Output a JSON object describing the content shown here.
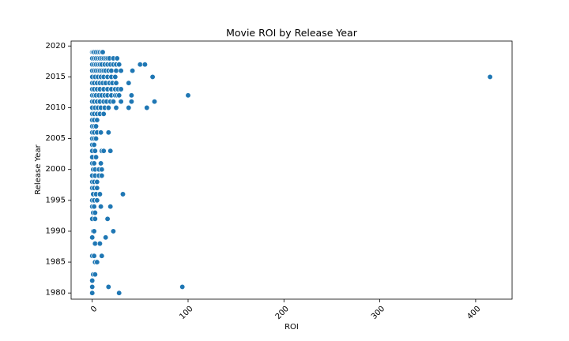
{
  "chart_data": {
    "type": "scatter",
    "title": "Movie ROI by Release Year",
    "xlabel": "ROI",
    "ylabel": "Release Year",
    "xlim": [
      -22,
      438
    ],
    "ylim": [
      1979,
      2020.8
    ],
    "xticks": [
      0,
      100,
      200,
      300,
      400
    ],
    "yticks": [
      1980,
      1985,
      1990,
      1995,
      2000,
      2005,
      2010,
      2015,
      2020
    ],
    "xtick_rotation": 45,
    "grid": false,
    "point_color": "#1f77b4",
    "points": [
      [
        0,
        2019
      ],
      [
        1,
        2019
      ],
      [
        2,
        2019
      ],
      [
        4,
        2019
      ],
      [
        6,
        2019
      ],
      [
        8,
        2019
      ],
      [
        10,
        2019
      ],
      [
        11,
        2019
      ],
      [
        0,
        2018
      ],
      [
        2,
        2018
      ],
      [
        4,
        2018
      ],
      [
        6,
        2018
      ],
      [
        8,
        2018
      ],
      [
        10,
        2018
      ],
      [
        12,
        2018
      ],
      [
        14,
        2018
      ],
      [
        16,
        2018
      ],
      [
        18,
        2018
      ],
      [
        22,
        2018
      ],
      [
        26,
        2018
      ],
      [
        0,
        2017
      ],
      [
        2,
        2017
      ],
      [
        4,
        2017
      ],
      [
        6,
        2017
      ],
      [
        8,
        2017
      ],
      [
        10,
        2017
      ],
      [
        13,
        2017
      ],
      [
        16,
        2017
      ],
      [
        19,
        2017
      ],
      [
        22,
        2017
      ],
      [
        25,
        2017
      ],
      [
        28,
        2017
      ],
      [
        50,
        2017
      ],
      [
        55,
        2017
      ],
      [
        0,
        2016
      ],
      [
        2,
        2016
      ],
      [
        4,
        2016
      ],
      [
        6,
        2016
      ],
      [
        8,
        2016
      ],
      [
        10,
        2016
      ],
      [
        12,
        2016
      ],
      [
        14,
        2016
      ],
      [
        17,
        2016
      ],
      [
        20,
        2016
      ],
      [
        25,
        2016
      ],
      [
        30,
        2016
      ],
      [
        42,
        2016
      ],
      [
        0,
        2015
      ],
      [
        3,
        2015
      ],
      [
        6,
        2015
      ],
      [
        9,
        2015
      ],
      [
        12,
        2015
      ],
      [
        16,
        2015
      ],
      [
        20,
        2015
      ],
      [
        24,
        2015
      ],
      [
        63,
        2015
      ],
      [
        415,
        2015
      ],
      [
        0,
        2014
      ],
      [
        2,
        2014
      ],
      [
        5,
        2014
      ],
      [
        8,
        2014
      ],
      [
        11,
        2014
      ],
      [
        14,
        2014
      ],
      [
        18,
        2014
      ],
      [
        21,
        2014
      ],
      [
        25,
        2014
      ],
      [
        38,
        2014
      ],
      [
        0,
        2013
      ],
      [
        2,
        2013
      ],
      [
        5,
        2013
      ],
      [
        8,
        2013
      ],
      [
        12,
        2013
      ],
      [
        16,
        2013
      ],
      [
        20,
        2013
      ],
      [
        24,
        2013
      ],
      [
        27,
        2013
      ],
      [
        30,
        2013
      ],
      [
        0,
        2012
      ],
      [
        2,
        2012
      ],
      [
        4,
        2012
      ],
      [
        7,
        2012
      ],
      [
        10,
        2012
      ],
      [
        13,
        2012
      ],
      [
        16,
        2012
      ],
      [
        20,
        2012
      ],
      [
        24,
        2012
      ],
      [
        26,
        2012
      ],
      [
        28,
        2012
      ],
      [
        41,
        2012
      ],
      [
        100,
        2012
      ],
      [
        0,
        2011
      ],
      [
        2,
        2011
      ],
      [
        5,
        2011
      ],
      [
        8,
        2011
      ],
      [
        12,
        2011
      ],
      [
        15,
        2011
      ],
      [
        19,
        2011
      ],
      [
        22,
        2011
      ],
      [
        30,
        2011
      ],
      [
        41,
        2011
      ],
      [
        65,
        2011
      ],
      [
        0,
        2010
      ],
      [
        3,
        2010
      ],
      [
        6,
        2010
      ],
      [
        9,
        2010
      ],
      [
        13,
        2010
      ],
      [
        17,
        2010
      ],
      [
        25,
        2010
      ],
      [
        38,
        2010
      ],
      [
        57,
        2010
      ],
      [
        0,
        2009
      ],
      [
        2,
        2009
      ],
      [
        5,
        2009
      ],
      [
        8,
        2009
      ],
      [
        12,
        2009
      ],
      [
        0,
        2008
      ],
      [
        2,
        2008
      ],
      [
        5,
        2008
      ],
      [
        0,
        2007
      ],
      [
        2,
        2007
      ],
      [
        4,
        2007
      ],
      [
        0,
        2006
      ],
      [
        2,
        2006
      ],
      [
        5,
        2006
      ],
      [
        9,
        2006
      ],
      [
        17,
        2006
      ],
      [
        0,
        2005
      ],
      [
        2,
        2005
      ],
      [
        4,
        2005
      ],
      [
        0,
        2004
      ],
      [
        2,
        2004
      ],
      [
        0,
        2003
      ],
      [
        3,
        2003
      ],
      [
        10,
        2003
      ],
      [
        12,
        2003
      ],
      [
        19,
        2003
      ],
      [
        0,
        2002
      ],
      [
        4,
        2002
      ],
      [
        0,
        2001
      ],
      [
        2,
        2001
      ],
      [
        9,
        2001
      ],
      [
        1,
        2000
      ],
      [
        3,
        2000
      ],
      [
        7,
        2000
      ],
      [
        10,
        2000
      ],
      [
        0,
        1999
      ],
      [
        3,
        1999
      ],
      [
        7,
        1999
      ],
      [
        10,
        1999
      ],
      [
        0,
        1998
      ],
      [
        2,
        1998
      ],
      [
        5,
        1998
      ],
      [
        0,
        1997
      ],
      [
        2,
        1997
      ],
      [
        5,
        1997
      ],
      [
        1,
        1996
      ],
      [
        4,
        1996
      ],
      [
        8,
        1996
      ],
      [
        32,
        1996
      ],
      [
        0,
        1995
      ],
      [
        2,
        1995
      ],
      [
        5,
        1995
      ],
      [
        0,
        1994
      ],
      [
        2,
        1994
      ],
      [
        9,
        1994
      ],
      [
        19,
        1994
      ],
      [
        1,
        1993
      ],
      [
        3,
        1993
      ],
      [
        0,
        1992
      ],
      [
        3,
        1992
      ],
      [
        16,
        1992
      ],
      [
        1,
        1990
      ],
      [
        2,
        1990
      ],
      [
        22,
        1990
      ],
      [
        0,
        1989
      ],
      [
        14,
        1989
      ],
      [
        3,
        1988
      ],
      [
        8,
        1988
      ],
      [
        0,
        1986
      ],
      [
        2,
        1986
      ],
      [
        10,
        1986
      ],
      [
        3,
        1985
      ],
      [
        5,
        1985
      ],
      [
        1,
        1983
      ],
      [
        3,
        1983
      ],
      [
        0,
        1982
      ],
      [
        0,
        1981
      ],
      [
        17,
        1981
      ],
      [
        94,
        1981
      ],
      [
        0,
        1980
      ],
      [
        28,
        1980
      ]
    ]
  }
}
